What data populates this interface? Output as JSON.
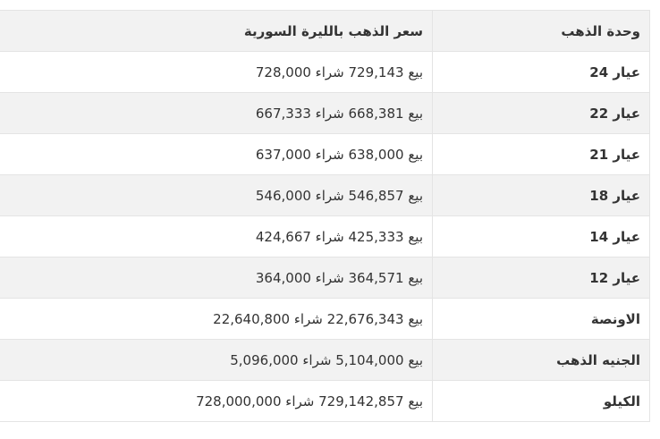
{
  "table": {
    "header": [
      "وحدة الذهب",
      "سعر الذهب بالليرة السورية"
    ],
    "rows": [
      [
        "عيار 24",
        "بيع 729,143 شراء 728,000"
      ],
      [
        "عيار 22",
        "بيع 668,381 شراء 667,333"
      ],
      [
        "عيار 21",
        "بيع 638,000 شراء 637,000"
      ],
      [
        "عيار 18",
        "بيع 546,857 شراء 546,000"
      ],
      [
        "عيار 14",
        "بيع 425,333 شراء 424,667"
      ],
      [
        "عيار 12",
        "بيع 364,571 شراء 364,000"
      ],
      [
        "الاونصة",
        "بيع 22,676,343 شراء 22,640,800"
      ],
      [
        "الجنيه الذهب",
        "بيع 5,104,000 شراء 5,096,000"
      ],
      [
        "الكيلو",
        "بيع 729,142,857 شراء 728,000,000"
      ]
    ]
  }
}
